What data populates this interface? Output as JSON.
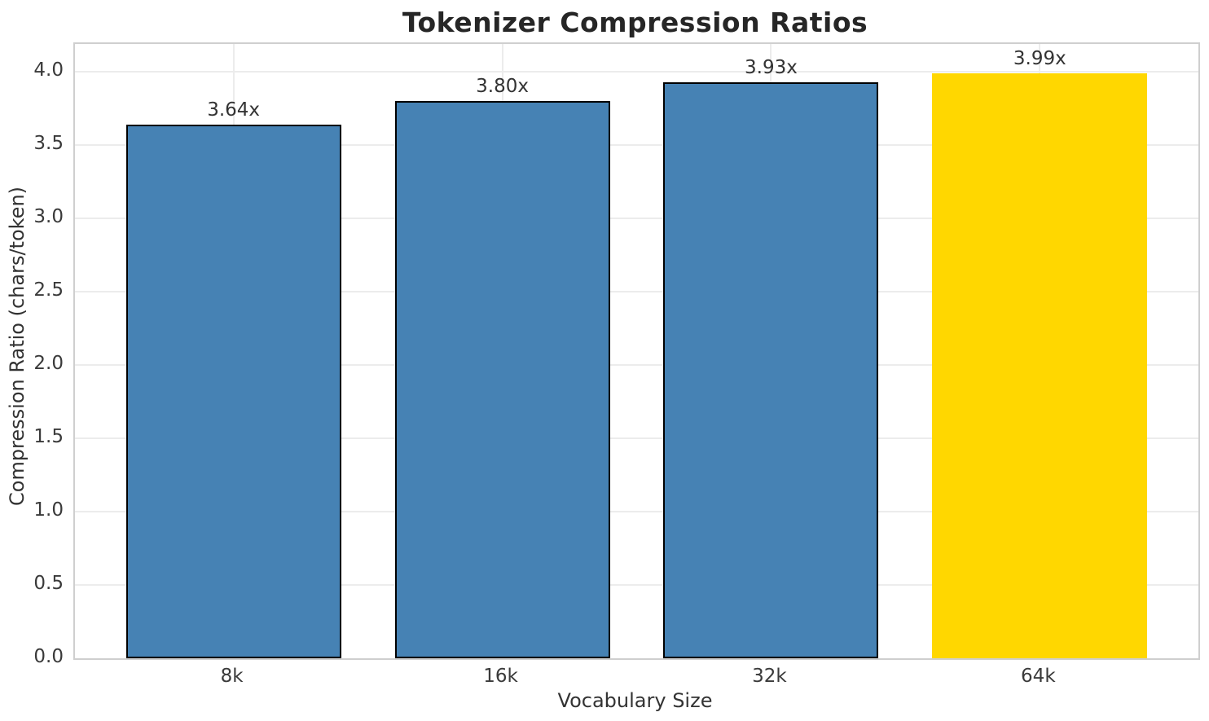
{
  "chart_data": {
    "type": "bar",
    "title": "Tokenizer Compression Ratios",
    "xlabel": "Vocabulary Size",
    "ylabel": "Compression Ratio (chars/token)",
    "categories": [
      "8k",
      "16k",
      "32k",
      "64k"
    ],
    "values": [
      3.64,
      3.8,
      3.93,
      3.99
    ],
    "bar_labels": [
      "3.64x",
      "3.80x",
      "3.93x",
      "3.99x"
    ],
    "ylim": [
      0,
      4.19
    ],
    "yticks": [
      0,
      0.5,
      1.0,
      1.5,
      2.0,
      2.5,
      3.0,
      3.5,
      4.0
    ],
    "ytick_labels": [
      "0.0",
      "0.5",
      "1.0",
      "1.5",
      "2.0",
      "2.5",
      "3.0",
      "3.5",
      "4.0"
    ],
    "grid": true,
    "legend_position": "none",
    "bar_color": "#4682B4",
    "highlight_color": "#FFD700",
    "highlight_index": 3,
    "edge_color": "#000000",
    "grid_color": "#ececec",
    "spine_color": "#cfcfcf"
  }
}
